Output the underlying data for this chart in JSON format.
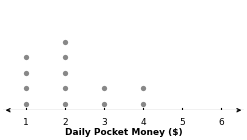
{
  "dot_counts": {
    "1": 4,
    "2": 5,
    "3": 2,
    "4": 2
  },
  "xlim": [
    0.4,
    6.6
  ],
  "ylim": [
    0.3,
    6.2
  ],
  "xticks": [
    1,
    2,
    3,
    4,
    5,
    6
  ],
  "xlabel": "Daily Pocket Money ($)",
  "dot_color": "#888888",
  "background_color": "#ffffff",
  "xlabel_fontsize": 6.5,
  "xlabel_fontweight": "bold",
  "tick_fontsize": 6.5,
  "dot_markersize": 3.8,
  "dot_y_spacing": 0.85,
  "dot_y_start": 0.65
}
